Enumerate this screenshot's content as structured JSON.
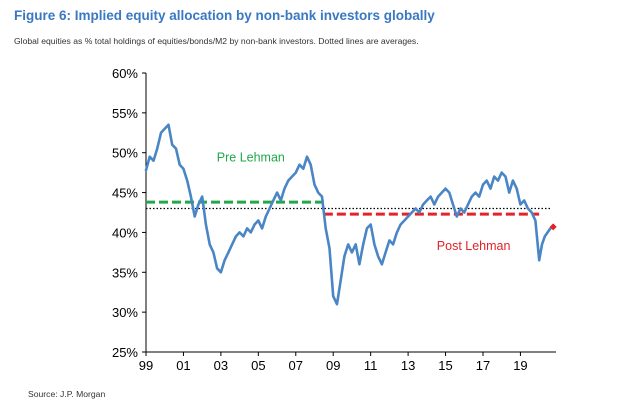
{
  "title": "Figure 6: Implied equity allocation by non-bank investors globally",
  "subtitle": "Global equities as % total holdings of equities/bonds/M2 by non-bank investors. Dotted lines are averages.",
  "source": "Source: J.P. Morgan",
  "chart_data": {
    "type": "line",
    "title": "Figure 6: Implied equity allocation by non-bank investors globally",
    "xlabel": "",
    "ylabel": "",
    "xlim": [
      1999,
      2020.9
    ],
    "ylim": [
      25,
      60
    ],
    "x_tick_labels": [
      "99",
      "01",
      "03",
      "05",
      "07",
      "09",
      "11",
      "13",
      "15",
      "17",
      "19"
    ],
    "x_ticks": [
      1999,
      2001,
      2003,
      2005,
      2007,
      2009,
      2011,
      2013,
      2015,
      2017,
      2019
    ],
    "y_tick_labels": [
      "25%",
      "30%",
      "35%",
      "40%",
      "45%",
      "50%",
      "55%",
      "60%"
    ],
    "y_ticks": [
      25,
      30,
      35,
      40,
      45,
      50,
      55,
      60
    ],
    "grid": false,
    "colors": {
      "series": "#4a86c5",
      "pre_lehman": "#22a84a",
      "post_lehman": "#e3222a",
      "overall_average": "#000000",
      "latest_marker": "#e3222a"
    },
    "series": [
      {
        "name": "",
        "x": [
          1999.0,
          1999.2,
          1999.4,
          1999.6,
          1999.8,
          2000.0,
          2000.2,
          2000.4,
          2000.6,
          2000.8,
          2001.0,
          2001.2,
          2001.4,
          2001.6,
          2001.8,
          2002.0,
          2002.2,
          2002.4,
          2002.6,
          2002.8,
          2003.0,
          2003.2,
          2003.4,
          2003.6,
          2003.8,
          2004.0,
          2004.2,
          2004.4,
          2004.6,
          2004.8,
          2005.0,
          2005.2,
          2005.4,
          2005.6,
          2005.8,
          2006.0,
          2006.2,
          2006.4,
          2006.6,
          2006.8,
          2007.0,
          2007.2,
          2007.4,
          2007.6,
          2007.8,
          2008.0,
          2008.2,
          2008.4,
          2008.6,
          2008.8,
          2009.0,
          2009.2,
          2009.4,
          2009.6,
          2009.8,
          2010.0,
          2010.2,
          2010.4,
          2010.6,
          2010.8,
          2011.0,
          2011.2,
          2011.4,
          2011.6,
          2011.8,
          2012.0,
          2012.2,
          2012.4,
          2012.6,
          2012.8,
          2013.0,
          2013.2,
          2013.4,
          2013.6,
          2013.8,
          2014.0,
          2014.2,
          2014.4,
          2014.6,
          2014.8,
          2015.0,
          2015.2,
          2015.4,
          2015.6,
          2015.8,
          2016.0,
          2016.2,
          2016.4,
          2016.6,
          2016.8,
          2017.0,
          2017.2,
          2017.4,
          2017.6,
          2017.8,
          2018.0,
          2018.2,
          2018.4,
          2018.6,
          2018.8,
          2019.0,
          2019.2,
          2019.4,
          2019.6,
          2019.8,
          2020.0,
          2020.15,
          2020.3,
          2020.45,
          2020.6
        ],
        "values": [
          47.8,
          49.5,
          49.0,
          50.5,
          52.5,
          53.0,
          53.5,
          51.0,
          50.5,
          48.5,
          48.0,
          46.5,
          44.5,
          42.0,
          43.5,
          44.5,
          41.0,
          38.5,
          37.5,
          35.5,
          35.0,
          36.5,
          37.5,
          38.5,
          39.5,
          40.0,
          39.5,
          40.5,
          40.0,
          41.0,
          41.5,
          40.5,
          42.0,
          43.0,
          44.0,
          45.0,
          44.0,
          45.5,
          46.5,
          47.0,
          47.5,
          48.5,
          48.0,
          49.5,
          48.5,
          46.0,
          45.0,
          44.5,
          40.5,
          38.0,
          32.0,
          31.0,
          34.0,
          37.0,
          38.5,
          37.5,
          38.5,
          36.0,
          38.5,
          40.5,
          41.0,
          38.5,
          37.0,
          36.0,
          37.5,
          39.0,
          38.5,
          40.0,
          41.0,
          41.5,
          42.0,
          42.5,
          43.0,
          42.5,
          43.5,
          44.0,
          44.5,
          43.5,
          44.5,
          45.0,
          45.5,
          45.0,
          43.5,
          42.0,
          43.0,
          42.5,
          43.5,
          44.5,
          45.0,
          44.5,
          46.0,
          46.5,
          45.5,
          47.0,
          46.5,
          47.5,
          47.0,
          45.0,
          46.5,
          45.5,
          43.5,
          44.0,
          43.0,
          42.5,
          41.5,
          36.5,
          38.5,
          39.5,
          40.0,
          40.5
        ]
      }
    ],
    "averages": {
      "overall": 43.0,
      "pre_lehman": {
        "value": 43.8,
        "x_start": 1999.0,
        "x_end": 2008.5
      },
      "post_lehman": {
        "value": 42.3,
        "x_start": 2008.5,
        "x_end": 2020.0
      }
    },
    "latest_point": {
      "x": 2020.75,
      "y": 40.7
    },
    "annotations": [
      {
        "text": "Pre Lehman",
        "x": 2004.6,
        "y": 48.9,
        "color": "#22a84a"
      },
      {
        "text": "Post Lehman",
        "x": 2016.5,
        "y": 37.8,
        "color": "#e3222a"
      }
    ]
  }
}
